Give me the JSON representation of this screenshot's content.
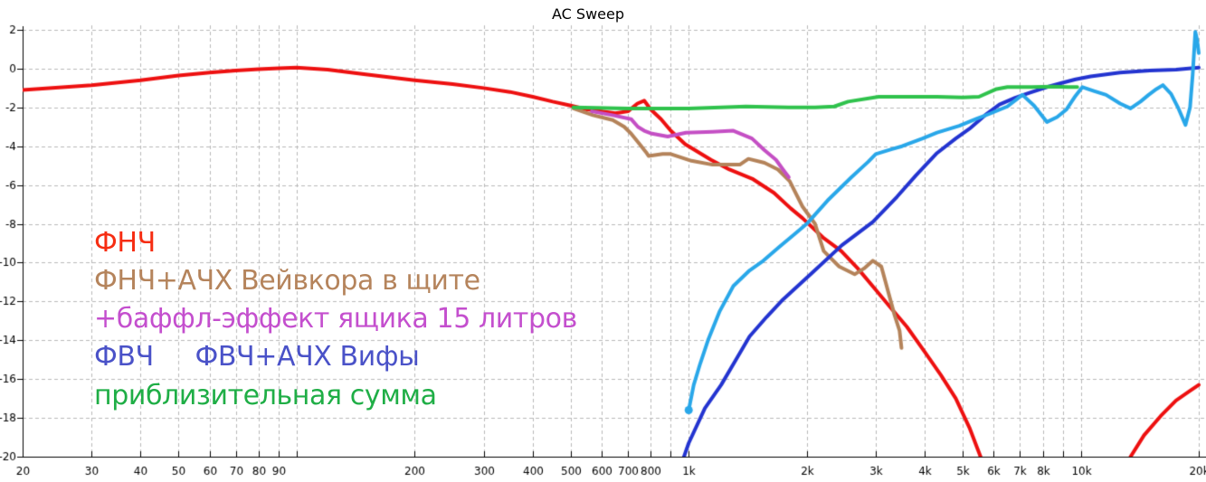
{
  "title": "AC Sweep",
  "legend": {
    "items": [
      {
        "text": "ФНЧ",
        "color": "#f62d12"
      },
      {
        "text": "ФНЧ+АЧХ Вейвкора в щите",
        "color": "#b5845c"
      },
      {
        "text": "+баффл-эффект ящика 15 литров",
        "color": "#c44fce"
      },
      {
        "text": "ФВЧ     ФВЧ+АЧХ Вифы",
        "color": "#4a52c8"
      },
      {
        "text": "приблизительная сумма",
        "color": "#1fae46"
      }
    ]
  },
  "chart_data": {
    "type": "line",
    "title": "AC Sweep",
    "x_scale": "log",
    "f_range": [
      20,
      20000
    ],
    "db_range": [
      -20,
      2
    ],
    "grid": true,
    "grid_color": "#b9b9b9",
    "axis_color": "#000000",
    "yticks": [
      {
        "v": 2,
        "label": "2"
      },
      {
        "v": 0,
        "label": "0"
      },
      {
        "v": -2,
        "label": "-2"
      },
      {
        "v": -4,
        "label": "-4"
      },
      {
        "v": -6,
        "label": "-6"
      },
      {
        "v": -8,
        "label": "-8"
      },
      {
        "v": -10,
        "label": "-10"
      },
      {
        "v": -12,
        "label": "-12"
      },
      {
        "v": -14,
        "label": "-14"
      },
      {
        "v": -16,
        "label": "-16"
      },
      {
        "v": -18,
        "label": "-18"
      },
      {
        "v": -20,
        "label": "-20"
      }
    ],
    "xticks": [
      {
        "f": 20,
        "label": "20"
      },
      {
        "f": 30,
        "label": "30"
      },
      {
        "f": 40,
        "label": "40"
      },
      {
        "f": 50,
        "label": "50"
      },
      {
        "f": 60,
        "label": "60"
      },
      {
        "f": 70,
        "label": "70"
      },
      {
        "f": 80,
        "label": "80"
      },
      {
        "f": 90,
        "label": "90"
      },
      {
        "f": 100,
        "label": ""
      },
      {
        "f": 200,
        "label": "200"
      },
      {
        "f": 300,
        "label": "300"
      },
      {
        "f": 400,
        "label": "400"
      },
      {
        "f": 500,
        "label": "500"
      },
      {
        "f": 600,
        "label": "600"
      },
      {
        "f": 700,
        "label": "700"
      },
      {
        "f": 800,
        "label": "800"
      },
      {
        "f": 900,
        "label": ""
      },
      {
        "f": 1000,
        "label": "1k"
      },
      {
        "f": 2000,
        "label": "2k"
      },
      {
        "f": 3000,
        "label": "3k"
      },
      {
        "f": 4000,
        "label": "4k"
      },
      {
        "f": 5000,
        "label": "5k"
      },
      {
        "f": 6000,
        "label": "6k"
      },
      {
        "f": 7000,
        "label": "7k"
      },
      {
        "f": 8000,
        "label": "8k"
      },
      {
        "f": 9000,
        "label": ""
      },
      {
        "f": 10000,
        "label": "10k"
      },
      {
        "f": 20000,
        "label": "20k"
      }
    ],
    "series": [
      {
        "name": "ФНЧ",
        "color": "#ed1010",
        "width": 4,
        "points": [
          [
            20,
            -1.1
          ],
          [
            30,
            -0.85
          ],
          [
            40,
            -0.6
          ],
          [
            50,
            -0.35
          ],
          [
            60,
            -0.2
          ],
          [
            70,
            -0.1
          ],
          [
            80,
            -0.03
          ],
          [
            90,
            0.02
          ],
          [
            100,
            0.05
          ],
          [
            120,
            -0.05
          ],
          [
            150,
            -0.3
          ],
          [
            200,
            -0.6
          ],
          [
            250,
            -0.8
          ],
          [
            300,
            -1.0
          ],
          [
            350,
            -1.2
          ],
          [
            400,
            -1.45
          ],
          [
            450,
            -1.7
          ],
          [
            500,
            -1.9
          ],
          [
            550,
            -2.1
          ],
          [
            600,
            -2.2
          ],
          [
            650,
            -2.3
          ],
          [
            700,
            -2.2
          ],
          [
            740,
            -1.8
          ],
          [
            770,
            -1.65
          ],
          [
            800,
            -2.1
          ],
          [
            850,
            -2.6
          ],
          [
            900,
            -3.2
          ],
          [
            980,
            -3.9
          ],
          [
            1140,
            -4.7
          ],
          [
            1270,
            -5.2
          ],
          [
            1460,
            -5.7
          ],
          [
            1650,
            -6.4
          ],
          [
            1820,
            -7.2
          ],
          [
            1950,
            -7.7
          ],
          [
            2200,
            -8.7
          ],
          [
            2450,
            -9.4
          ],
          [
            2700,
            -10.3
          ],
          [
            3000,
            -11.4
          ],
          [
            3300,
            -12.4
          ],
          [
            3600,
            -13.3
          ],
          [
            4000,
            -14.6
          ],
          [
            4400,
            -15.8
          ],
          [
            4800,
            -17.0
          ],
          [
            5200,
            -18.5
          ],
          [
            5600,
            -20.2
          ],
          [
            5900,
            -21.5
          ],
          [
            7000,
            -26
          ],
          [
            10500,
            -26
          ],
          [
            12800,
            -21.2
          ],
          [
            13400,
            -20.0
          ],
          [
            14500,
            -18.9
          ],
          [
            16000,
            -17.9
          ],
          [
            17500,
            -17.1
          ],
          [
            19000,
            -16.6
          ],
          [
            20000,
            -16.3
          ]
        ]
      },
      {
        "name": "ФНЧ+АЧХ Вейвкора в щите",
        "color": "#b4835a",
        "width": 4,
        "points": [
          [
            508,
            -2.05
          ],
          [
            570,
            -2.4
          ],
          [
            640,
            -2.65
          ],
          [
            685,
            -3.0
          ],
          [
            713,
            -3.35
          ],
          [
            750,
            -3.9
          ],
          [
            778,
            -4.3
          ],
          [
            790,
            -4.5
          ],
          [
            858,
            -4.4
          ],
          [
            900,
            -4.4
          ],
          [
            1016,
            -4.75
          ],
          [
            1150,
            -4.95
          ],
          [
            1350,
            -4.95
          ],
          [
            1420,
            -4.65
          ],
          [
            1560,
            -4.85
          ],
          [
            1690,
            -5.2
          ],
          [
            1810,
            -5.8
          ],
          [
            1950,
            -7.1
          ],
          [
            2100,
            -8.0
          ],
          [
            2210,
            -9.4
          ],
          [
            2420,
            -10.2
          ],
          [
            2650,
            -10.6
          ],
          [
            2800,
            -10.3
          ],
          [
            2950,
            -9.9
          ],
          [
            3100,
            -10.2
          ],
          [
            3350,
            -12.7
          ],
          [
            3450,
            -13.5
          ],
          [
            3490,
            -14.4
          ]
        ]
      },
      {
        "name": "+баффл-эффект ящика 15 литров",
        "color": "#c44fc4",
        "width": 4,
        "points": [
          [
            566,
            -2.2
          ],
          [
            640,
            -2.4
          ],
          [
            713,
            -2.6
          ],
          [
            742,
            -3.0
          ],
          [
            770,
            -3.2
          ],
          [
            806,
            -3.35
          ],
          [
            884,
            -3.5
          ],
          [
            984,
            -3.3
          ],
          [
            1150,
            -3.25
          ],
          [
            1300,
            -3.2
          ],
          [
            1450,
            -3.6
          ],
          [
            1560,
            -4.2
          ],
          [
            1670,
            -4.7
          ],
          [
            1740,
            -5.2
          ],
          [
            1800,
            -5.6
          ]
        ]
      },
      {
        "name": "ФВЧ",
        "color": "#2334d0",
        "width": 4,
        "points": [
          [
            950,
            -20.6
          ],
          [
            1000,
            -19.3
          ],
          [
            1100,
            -17.5
          ],
          [
            1210,
            -16.3
          ],
          [
            1320,
            -15.0
          ],
          [
            1430,
            -13.8
          ],
          [
            1580,
            -12.8
          ],
          [
            1740,
            -11.9
          ],
          [
            2070,
            -10.5
          ],
          [
            2460,
            -9.1
          ],
          [
            2950,
            -7.9
          ],
          [
            3400,
            -6.6
          ],
          [
            3800,
            -5.5
          ],
          [
            4300,
            -4.35
          ],
          [
            4800,
            -3.6
          ],
          [
            5200,
            -3.1
          ],
          [
            5700,
            -2.4
          ],
          [
            6200,
            -1.85
          ],
          [
            6800,
            -1.5
          ],
          [
            7400,
            -1.25
          ],
          [
            8200,
            -0.95
          ],
          [
            8900,
            -0.75
          ],
          [
            9700,
            -0.55
          ],
          [
            10600,
            -0.4
          ],
          [
            12600,
            -0.2
          ],
          [
            15000,
            -0.1
          ],
          [
            17500,
            -0.05
          ],
          [
            20000,
            0.05
          ]
        ]
      },
      {
        "name": "приблизительная сумма",
        "color": "#2fc24c",
        "width": 4,
        "points": [
          [
            508,
            -2.0
          ],
          [
            700,
            -2.05
          ],
          [
            1000,
            -2.05
          ],
          [
            1400,
            -1.95
          ],
          [
            1800,
            -2.0
          ],
          [
            2100,
            -2.0
          ],
          [
            2350,
            -1.95
          ],
          [
            2550,
            -1.7
          ],
          [
            3050,
            -1.45
          ],
          [
            3600,
            -1.45
          ],
          [
            4300,
            -1.45
          ],
          [
            5000,
            -1.48
          ],
          [
            5500,
            -1.45
          ],
          [
            6100,
            -1.05
          ],
          [
            6500,
            -0.95
          ],
          [
            7500,
            -0.95
          ],
          [
            8500,
            -0.92
          ],
          [
            9300,
            -0.95
          ],
          [
            9800,
            -0.95
          ]
        ]
      },
      {
        "name": "ФВЧ+АЧХ Вифы",
        "color": "#29a7e9",
        "width": 4,
        "start_dot": [
          1000,
          -17.6
        ],
        "points": [
          [
            1000,
            -17.6
          ],
          [
            1030,
            -16.3
          ],
          [
            1070,
            -15.2
          ],
          [
            1120,
            -14.0
          ],
          [
            1200,
            -12.5
          ],
          [
            1300,
            -11.2
          ],
          [
            1430,
            -10.4
          ],
          [
            1550,
            -9.9
          ],
          [
            1700,
            -9.2
          ],
          [
            1870,
            -8.5
          ],
          [
            2000,
            -8.0
          ],
          [
            2260,
            -6.8
          ],
          [
            2600,
            -5.6
          ],
          [
            2870,
            -4.8
          ],
          [
            3000,
            -4.4
          ],
          [
            3300,
            -4.15
          ],
          [
            3500,
            -4.0
          ],
          [
            3950,
            -3.6
          ],
          [
            4300,
            -3.3
          ],
          [
            4900,
            -2.95
          ],
          [
            5400,
            -2.6
          ],
          [
            5900,
            -2.3
          ],
          [
            6500,
            -1.95
          ],
          [
            7100,
            -1.35
          ],
          [
            7600,
            -1.9
          ],
          [
            8200,
            -2.75
          ],
          [
            8700,
            -2.5
          ],
          [
            9200,
            -2.1
          ],
          [
            9700,
            -1.4
          ],
          [
            10100,
            -0.95
          ],
          [
            10800,
            -1.15
          ],
          [
            11600,
            -1.35
          ],
          [
            12600,
            -1.8
          ],
          [
            13400,
            -2.05
          ],
          [
            14200,
            -1.7
          ],
          [
            14900,
            -1.35
          ],
          [
            15600,
            -1.05
          ],
          [
            16200,
            -0.85
          ],
          [
            17000,
            -1.3
          ],
          [
            17700,
            -2.0
          ],
          [
            18500,
            -2.9
          ],
          [
            19000,
            -2.0
          ],
          [
            19300,
            -0.3
          ],
          [
            19600,
            1.9
          ],
          [
            19800,
            1.5
          ],
          [
            20000,
            0.8
          ]
        ]
      }
    ]
  }
}
